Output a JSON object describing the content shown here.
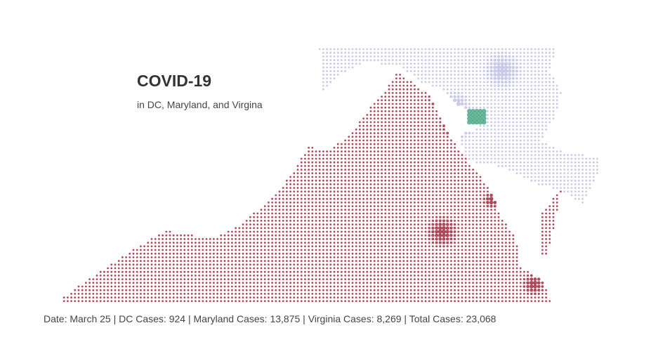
{
  "title": "COVID-19",
  "subtitle": "in DC, Maryland, and Virgina",
  "footer": {
    "date_label": "Date:",
    "date": "March 25",
    "dc_label": "DC Cases:",
    "dc_cases": "924",
    "md_label": "Maryland Cases:",
    "md_cases": "13,875",
    "va_label": "Virginia Cases:",
    "va_cases": "8,269",
    "total_label": "Total Cases:",
    "total_cases": "23,068"
  },
  "colors": {
    "virginia": "#9e2a40",
    "maryland": "#c3c3e6",
    "dc": "#4fa98a",
    "text": "#444444"
  }
}
